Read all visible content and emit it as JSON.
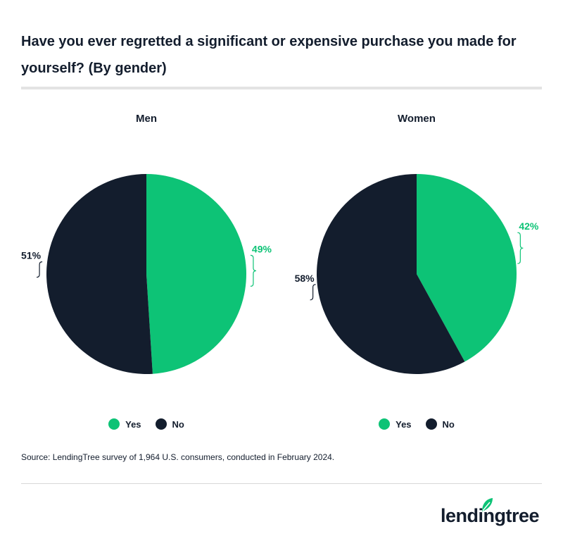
{
  "title": "Have you ever regretted a significant or expensive purchase you made for yourself? (By gender)",
  "source": "Source: LendingTree survey of 1,964 U.S. consumers, conducted in February 2024.",
  "logo": {
    "text": "lendingtree",
    "icon": "leaf-icon"
  },
  "colors": {
    "yes": "#0dc376",
    "no": "#131d2d",
    "yes_label": "#0dc376",
    "no_label": "#131d2d"
  },
  "chart_data": [
    {
      "type": "pie",
      "title": "Men",
      "categories": [
        "Yes",
        "No"
      ],
      "values": [
        49,
        51
      ],
      "labels": [
        "49%",
        "51%"
      ],
      "legend": [
        "Yes",
        "No"
      ]
    },
    {
      "type": "pie",
      "title": "Women",
      "categories": [
        "Yes",
        "No"
      ],
      "values": [
        42,
        58
      ],
      "labels": [
        "42%",
        "58%"
      ],
      "legend": [
        "Yes",
        "No"
      ]
    }
  ]
}
